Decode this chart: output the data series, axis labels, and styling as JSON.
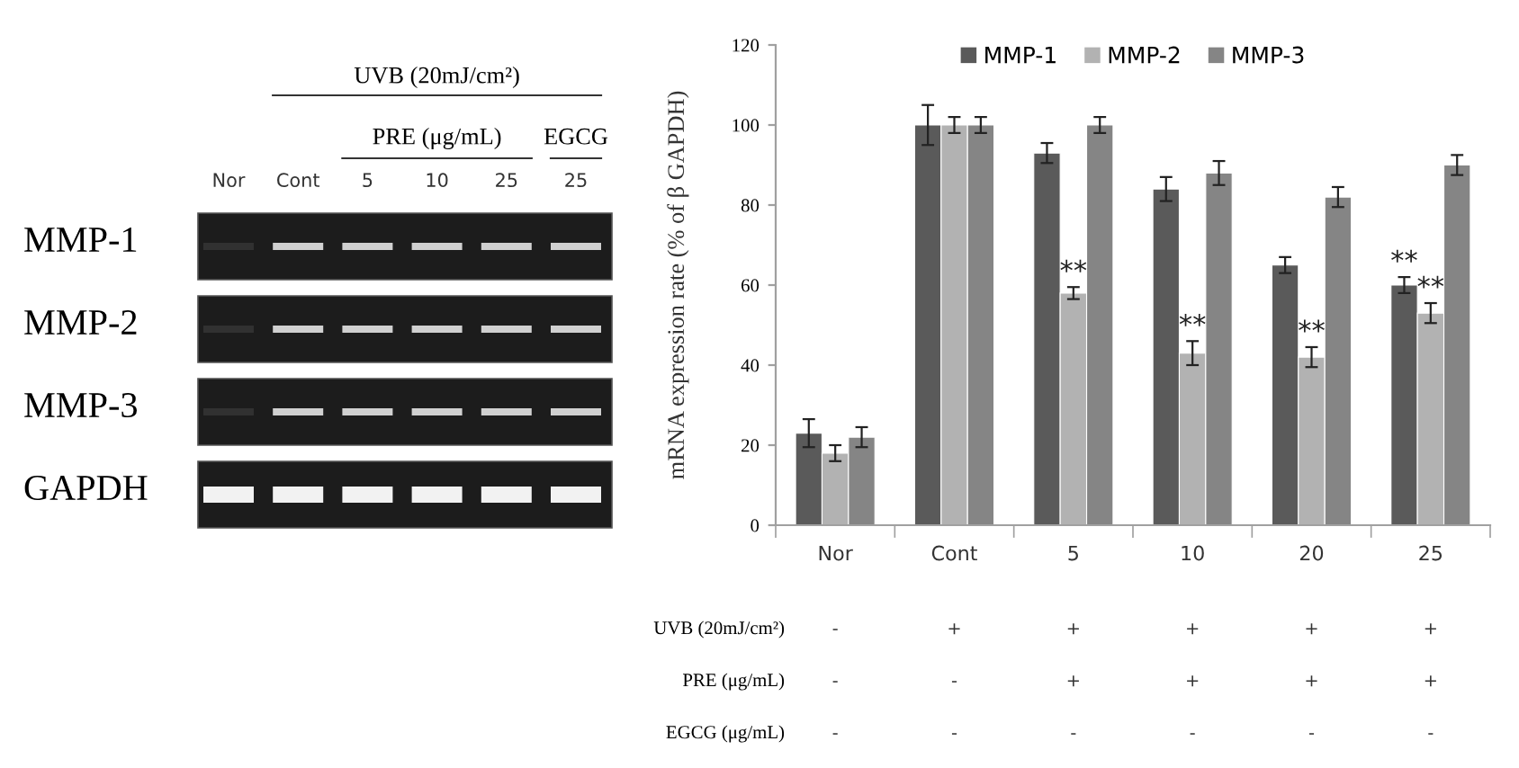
{
  "chart_data": [
    {
      "type": "other",
      "annotations": [
        "UVB (20mJ/cm²)",
        "PRE (μg/mL)",
        "EGCG",
        "Nor",
        "Cont",
        "5",
        "10",
        "25",
        "25",
        "MMP-1",
        "MMP-2",
        "MMP-3",
        "GAPDH"
      ]
    },
    {
      "type": "bar",
      "ylabel": "mRNA expression rate (% of β GAPDH)",
      "categories": [
        "Nor",
        "Cont",
        "5",
        "10",
        "20",
        "25"
      ],
      "series": [
        {
          "name": "MMP-1",
          "color": "#5a5a5a",
          "values": [
            23,
            100,
            93,
            84,
            65,
            60
          ],
          "errors": [
            3.5,
            5,
            2.5,
            3,
            2,
            2
          ],
          "value_labels": [
            null,
            null,
            null,
            null,
            null,
            "**"
          ]
        },
        {
          "name": "MMP-2",
          "color": "#b2b2b2",
          "values": [
            18,
            100,
            58,
            43,
            42,
            53
          ],
          "errors": [
            2,
            2,
            1.5,
            3,
            2.5,
            2.5
          ],
          "value_labels": [
            null,
            null,
            "**",
            "**",
            "**",
            "**"
          ]
        },
        {
          "name": "MMP-3",
          "color": "#858585",
          "values": [
            22,
            100,
            100,
            88,
            82,
            90
          ],
          "errors": [
            2.5,
            2,
            2,
            3,
            2.5,
            2.5
          ]
        }
      ],
      "ylim": [
        0,
        120
      ],
      "yticks": [
        0,
        20,
        40,
        60,
        80,
        100,
        120
      ],
      "legend": "top",
      "annotations": [
        "UVB (20mJ/cm²)",
        "-",
        "+",
        "+",
        "+",
        "+",
        "+",
        "PRE (μg/mL)",
        "-",
        "-",
        "+",
        "+",
        "+",
        "+",
        "EGCG (μg/mL)",
        "-",
        "-",
        "-",
        "-",
        "-",
        "-"
      ]
    }
  ]
}
